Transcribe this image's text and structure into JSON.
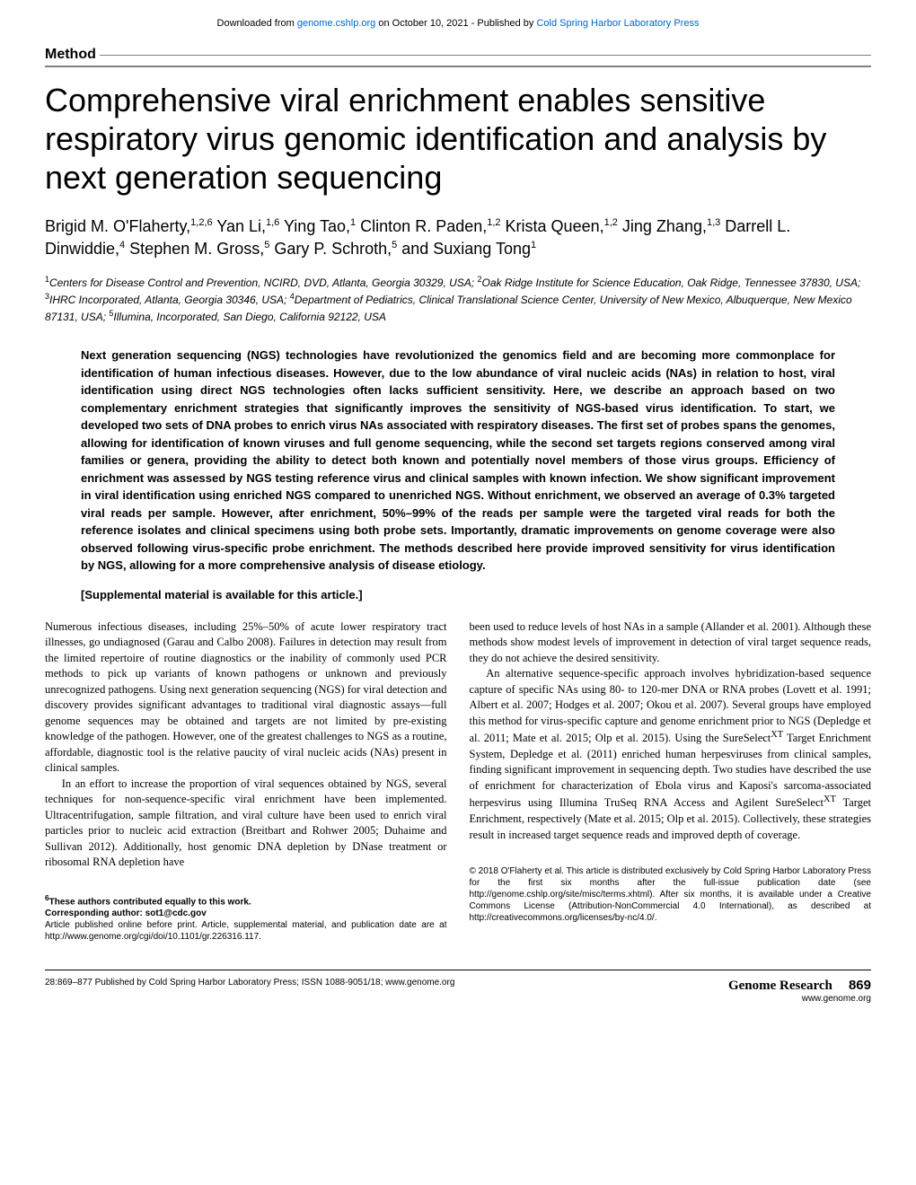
{
  "download_header": {
    "prefix": "Downloaded from ",
    "link1": "genome.cshlp.org",
    "middle": " on October 10, 2021 - Published by ",
    "link2": "Cold Spring Harbor Laboratory Press"
  },
  "section_label": "Method",
  "title": "Comprehensive viral enrichment enables sensitive respiratory virus genomic identification and analysis by next generation sequencing",
  "authors_html": "Brigid M. O'Flaherty,<sup>1,2,6</sup> Yan Li,<sup>1,6</sup> Ying Tao,<sup>1</sup> Clinton R. Paden,<sup>1,2</sup> Krista Queen,<sup>1,2</sup> Jing Zhang,<sup>1,3</sup> Darrell L. Dinwiddie,<sup>4</sup> Stephen M. Gross,<sup>5</sup> Gary P. Schroth,<sup>5</sup> and Suxiang Tong<sup>1</sup>",
  "affiliations_html": "<sup>1</sup>Centers for Disease Control and Prevention, NCIRD, DVD, Atlanta, Georgia 30329, USA; <sup>2</sup>Oak Ridge Institute for Science Education, Oak Ridge, Tennessee 37830, USA; <sup>3</sup>IHRC Incorporated, Atlanta, Georgia 30346, USA; <sup>4</sup>Department of Pediatrics, Clinical Translational Science Center, University of New Mexico, Albuquerque, New Mexico 87131, USA; <sup>5</sup>Illumina, Incorporated, San Diego, California 92122, USA",
  "abstract": "Next generation sequencing (NGS) technologies have revolutionized the genomics field and are becoming more commonplace for identification of human infectious diseases. However, due to the low abundance of viral nucleic acids (NAs) in relation to host, viral identification using direct NGS technologies often lacks sufficient sensitivity. Here, we describe an approach based on two complementary enrichment strategies that significantly improves the sensitivity of NGS-based virus identification. To start, we developed two sets of DNA probes to enrich virus NAs associated with respiratory diseases. The first set of probes spans the genomes, allowing for identification of known viruses and full genome sequencing, while the second set targets regions conserved among viral families or genera, providing the ability to detect both known and potentially novel members of those virus groups. Efficiency of enrichment was assessed by NGS testing reference virus and clinical samples with known infection. We show significant improvement in viral identification using enriched NGS compared to unenriched NGS. Without enrichment, we observed an average of 0.3% targeted viral reads per sample. However, after enrichment, 50%–99% of the reads per sample were the targeted viral reads for both the reference isolates and clinical specimens using both probe sets. Importantly, dramatic improvements on genome coverage were also observed following virus-specific probe enrichment. The methods described here provide improved sensitivity for virus identification by NGS, allowing for a more comprehensive analysis of disease etiology.",
  "supplemental": "[Supplemental material is available for this article.]",
  "body": {
    "p1": "Numerous infectious diseases, including 25%–50% of acute lower respiratory tract illnesses, go undiagnosed (Garau and Calbo 2008). Failures in detection may result from the limited repertoire of routine diagnostics or the inability of commonly used PCR methods to pick up variants of known pathogens or unknown and previously unrecognized pathogens. Using next generation sequencing (NGS) for viral detection and discovery provides significant advantages to traditional viral diagnostic assays—full genome sequences may be obtained and targets are not limited by pre-existing knowledge of the pathogen. However, one of the greatest challenges to NGS as a routine, affordable, diagnostic tool is the relative paucity of viral nucleic acids (NAs) present in clinical samples.",
    "p2": "In an effort to increase the proportion of viral sequences obtained by NGS, several techniques for non-sequence-specific viral enrichment have been implemented. Ultracentrifugation, sample filtration, and viral culture have been used to enrich viral particles prior to nucleic acid extraction (Breitbart and Rohwer 2005; Duhaime and Sullivan 2012). Additionally, host genomic DNA depletion by DNase treatment or ribosomal RNA depletion have",
    "p3": "been used to reduce levels of host NAs in a sample (Allander et al. 2001). Although these methods show modest levels of improvement in detection of viral target sequence reads, they do not achieve the desired sensitivity.",
    "p4_html": "An alternative sequence-specific approach involves hybridization-based sequence capture of specific NAs using 80- to 120-mer DNA or RNA probes (Lovett et al. 1991; Albert et al. 2007; Hodges et al. 2007; Okou et al. 2007). Several groups have employed this method for virus-specific capture and genome enrichment prior to NGS (Depledge et al. 2011; Mate et al. 2015; Olp et al. 2015). Using the SureSelect<sup>XT</sup> Target Enrichment System, Depledge et al. (2011) enriched human herpesviruses from clinical samples, finding significant improvement in sequencing depth. Two studies have described the use of enrichment for characterization of Ebola virus and Kaposi's sarcoma-associated herpesvirus using Illumina TruSeq RNA Access and Agilent SureSelect<sup>XT</sup> Target Enrichment, respectively (Mate et al. 2015; Olp et al. 2015). Collectively, these strategies result in increased target sequence reads and improved depth of coverage."
  },
  "footnotes": {
    "equal_html": "<sup>6</sup>These authors contributed equally to this work.",
    "corresponding": "Corresponding author: sot1@cdc.gov",
    "pubinfo": "Article published online before print. Article, supplemental material, and publication date are at http://www.genome.org/cgi/doi/10.1101/gr.226316.117."
  },
  "copyright": "© 2018 O'Flaherty et al.   This article is distributed exclusively by Cold Spring Harbor Laboratory Press for the first six months after the full-issue publication date (see http://genome.cshlp.org/site/misc/terms.xhtml). After six months, it is available under a Creative Commons License (Attribution-NonCommercial 4.0 International), as described at http://creativecommons.org/licenses/by-nc/4.0/.",
  "footer": {
    "left": "28:869–877 Published by Cold Spring Harbor Laboratory Press; ISSN 1088-9051/18; www.genome.org",
    "brand": "Genome Research",
    "page": "869",
    "url": "www.genome.org"
  }
}
